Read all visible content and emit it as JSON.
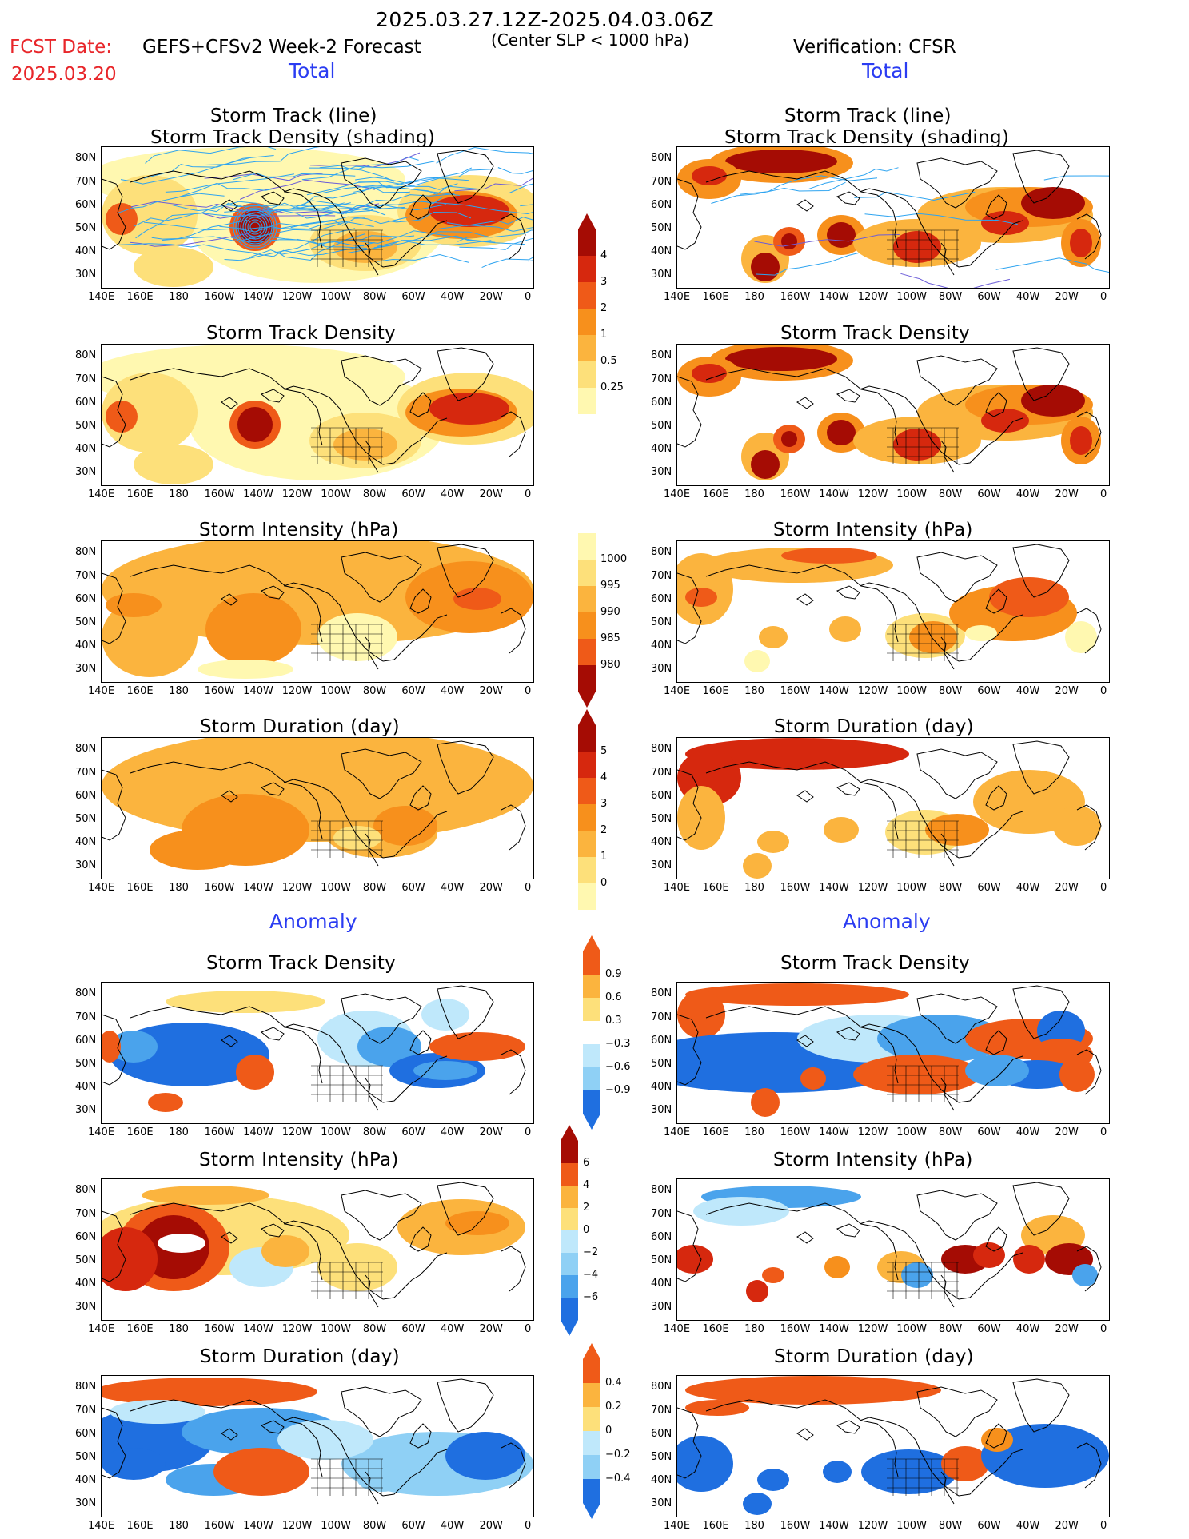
{
  "header": {
    "period": "2025.03.27.12Z-2025.04.03.06Z",
    "fcst_label": "FCST Date:",
    "fcst_date": "2025.03.20",
    "model": "GEFS+CFSv2 Week-2 Forecast",
    "criterion": "(Center SLP < 1000 hPa)",
    "verification": "Verification: CFSR"
  },
  "sections": {
    "total_left": "Total",
    "total_right": "Total",
    "anomaly_left": "Anomaly",
    "anomaly_right": "Anomaly"
  },
  "panel_titles": {
    "track_line": "Storm Track (line)",
    "track_shading": "Storm Track Density (shading)",
    "density": "Storm Track Density",
    "intensity": "Storm Intensity (hPa)",
    "duration": "Storm Duration (day)"
  },
  "axes": {
    "lat_labels": [
      "80N",
      "70N",
      "60N",
      "50N",
      "40N",
      "30N"
    ],
    "lon_labels": [
      "140E",
      "160E",
      "180",
      "160W",
      "140W",
      "120W",
      "100W",
      "80W",
      "60W",
      "40W",
      "20W",
      "0"
    ]
  },
  "colorbars": {
    "density_total": [
      "4",
      "3",
      "2",
      "1",
      "0.5",
      "0.25"
    ],
    "intensity_total": [
      "1000",
      "995",
      "990",
      "985",
      "980"
    ],
    "duration_total": [
      "5",
      "4",
      "3",
      "2",
      "1",
      "0"
    ],
    "density_anom": [
      "0.9",
      "0.6",
      "0.3",
      "−0.3",
      "−0.6",
      "−0.9"
    ],
    "intensity_anom": [
      "6",
      "4",
      "2",
      "0",
      "−2",
      "−4",
      "−6"
    ],
    "duration_anom": [
      "0.4",
      "0.2",
      "0",
      "−0.2",
      "−0.4"
    ]
  },
  "colors": {
    "c1": "#fff8b0",
    "c2": "#fde07a",
    "c3": "#fbb43e",
    "c4": "#f7901c",
    "c5": "#ef5a18",
    "c6": "#d6280e",
    "c7": "#a50c04",
    "b1": "#bfe8fb",
    "b2": "#8fd0f5",
    "b3": "#4aa3ec",
    "b4": "#1f6fe0",
    "track": "#2ea4f0",
    "track_alt": "#6b5cd8"
  }
}
